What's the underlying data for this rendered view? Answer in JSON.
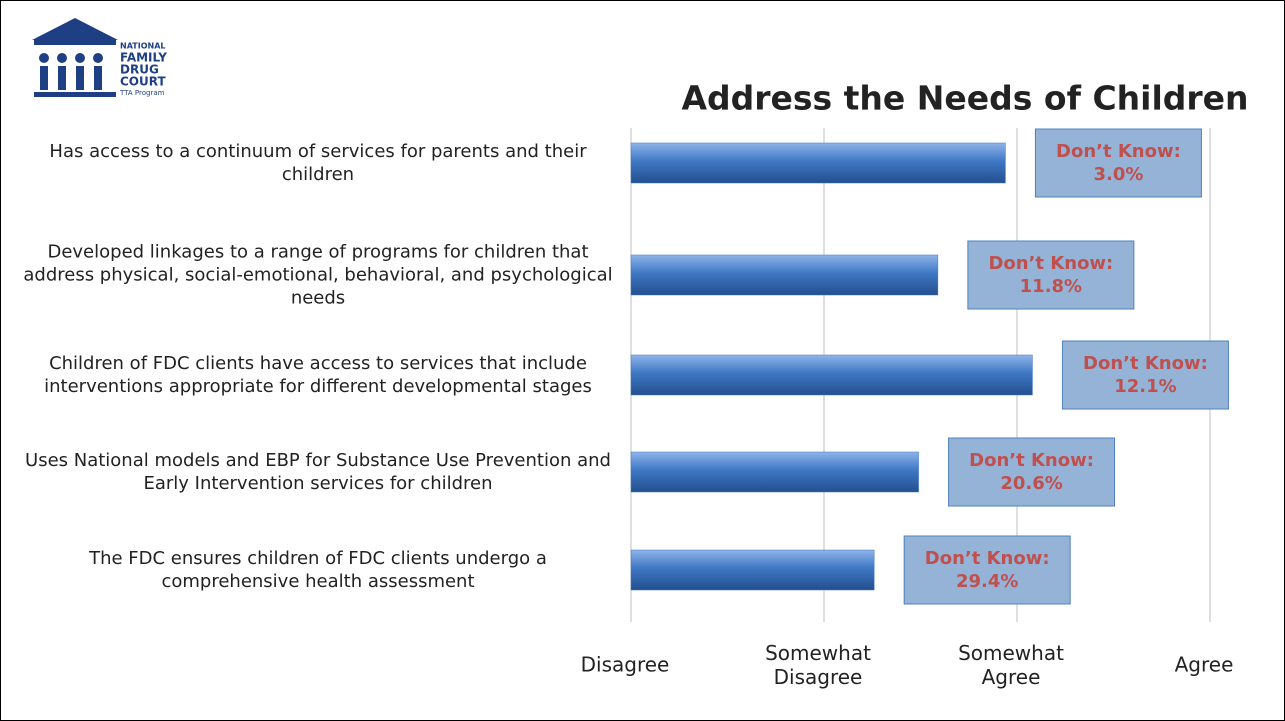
{
  "logo": {
    "lines": [
      "NATIONAL",
      "FAMILY",
      "DRUG",
      "COURT",
      "TTA Program"
    ]
  },
  "chart_data": {
    "type": "hbar",
    "title": "Address the Needs of Children",
    "categories": [
      "Has access to a continuum of services for parents and their children",
      "Developed linkages to a range of programs for children that address physical, social-emotional, behavioral, and psychological needs",
      "Children of FDC clients have access to services that include interventions appropriate for different developmental stages",
      "Uses National models and EBP for Substance Use Prevention and Early Intervention services for children",
      "The FDC ensures children of FDC clients undergo a comprehensive health assessment"
    ],
    "values": [
      2.94,
      2.59,
      3.08,
      2.49,
      2.26
    ],
    "annotations": [
      "Don’t Know: 3.0%",
      "Don’t Know: 11.8%",
      "Don’t Know: 12.1%",
      "Don’t Know: 20.6%",
      "Don’t Know: 29.4%"
    ],
    "color": "#3f78c4",
    "xlim": [
      1,
      4
    ],
    "xticks": [
      {
        "value": 1,
        "label": "Disagree"
      },
      {
        "value": 2,
        "label": "Somewhat Disagree"
      },
      {
        "value": 3,
        "label": "Somewhat Agree"
      },
      {
        "value": 4,
        "label": "Agree"
      }
    ],
    "grid": true
  }
}
